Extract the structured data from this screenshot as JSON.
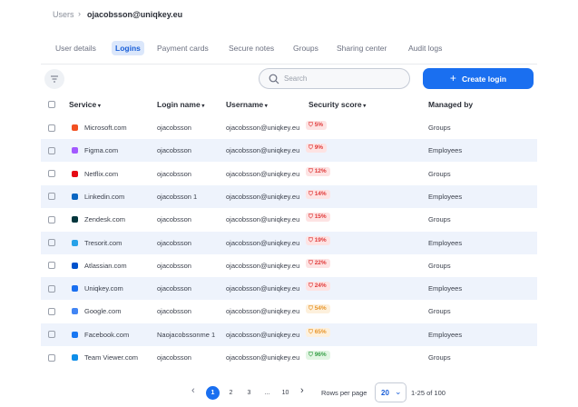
{
  "breadcrumb": {
    "parent": "Users",
    "current": "ojacobsson@uniqkey.eu"
  },
  "tabs": [
    "User details",
    "Logins",
    "Payment cards",
    "Secure notes",
    "Groups",
    "Sharing center",
    "Audit logs"
  ],
  "active_tab": 1,
  "toolbar": {
    "search_placeholder": "Search",
    "button": "Create login"
  },
  "table": {
    "columns": [
      "Service",
      "Login name",
      "Username",
      "Security score",
      "Managed by"
    ],
    "rows": [
      [
        "Microsoft.com",
        "ojacobsson",
        "ojacobsson@uniqkey.eu",
        "5%",
        "Groups"
      ],
      [
        "Figma.com",
        "ojacobsson",
        "ojacobsson@uniqkey.eu",
        "9%",
        "Employees"
      ],
      [
        "Netflix.com",
        "ojacobsson",
        "ojacobsson@uniqkey.eu",
        "12%",
        "Groups"
      ],
      [
        "Linkedin.com",
        "ojacobsson 1",
        "ojacobsson@uniqkey.eu",
        "14%",
        "Employees"
      ],
      [
        "Zendesk.com",
        "ojacobsson",
        "ojacobsson@uniqkey.eu",
        "15%",
        "Groups"
      ],
      [
        "Tresorit.com",
        "ojacobsson",
        "ojacobsson@uniqkey.eu",
        "19%",
        "Employees"
      ],
      [
        "Atlassian.com",
        "ojacobsson",
        "ojacobsson@uniqkey.eu",
        "22%",
        "Groups"
      ],
      [
        "Uniqkey.com",
        "ojacobsson",
        "ojacobsson@uniqkey.eu",
        "24%",
        "Employees"
      ],
      [
        "Google.com",
        "ojacobsson",
        "ojacobsson@uniqkey.eu",
        "54%",
        "Groups"
      ],
      [
        "Facebook.com",
        "Naojacobssonme 1",
        "ojacobsson@uniqkey.eu",
        "65%",
        "Employees"
      ],
      [
        "Team Viewer.com",
        "ojacobsson",
        "ojacobsson@uniqkey.eu",
        "96%",
        "Groups"
      ]
    ]
  },
  "pagination": {
    "pages": [
      "1",
      "2",
      "3",
      "...",
      "10"
    ],
    "current": 0,
    "rows_per_page_label": "Rows per page",
    "rows_per_page": "20",
    "range": "1-25 of 100"
  }
}
